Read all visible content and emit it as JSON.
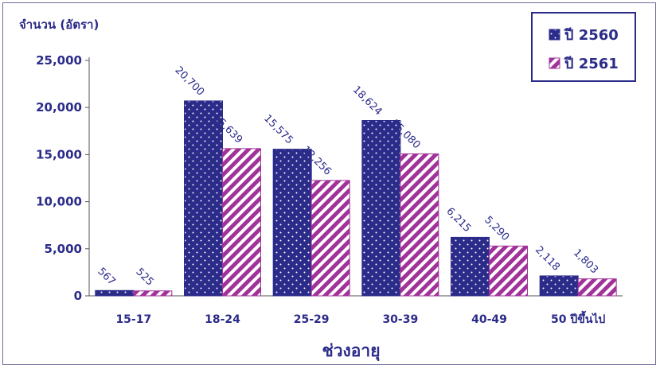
{
  "chart_data": {
    "type": "bar",
    "ylabel": "จำนวน (อัตรา)",
    "xlabel": "ช่วงอายุ",
    "categories": [
      "15-17",
      "18-24",
      "25-29",
      "30-39",
      "40-49",
      "50 ปีขึ้นไป"
    ],
    "series": [
      {
        "name": "ปี 2560",
        "values": [
          567,
          20700,
          15575,
          18624,
          6215,
          2118
        ],
        "labels": [
          "567",
          "20,700",
          "15,575",
          "18,624",
          "6,215",
          "2,118"
        ]
      },
      {
        "name": "ปี 2561",
        "values": [
          525,
          15639,
          12256,
          15080,
          5290,
          1803
        ],
        "labels": [
          "525",
          "15,639",
          "12,256",
          "15,080",
          "5,290",
          "1,803"
        ]
      }
    ],
    "yticks": [
      "0",
      "5,000",
      "10,000",
      "15,000",
      "20,000",
      "25,000"
    ],
    "ylim": [
      0,
      25000
    ],
    "grid": false,
    "legend": "top-right",
    "colors": {
      "series1": "#2b2b8a",
      "series2": "#a0329a",
      "text": "#2b2b8a"
    }
  }
}
